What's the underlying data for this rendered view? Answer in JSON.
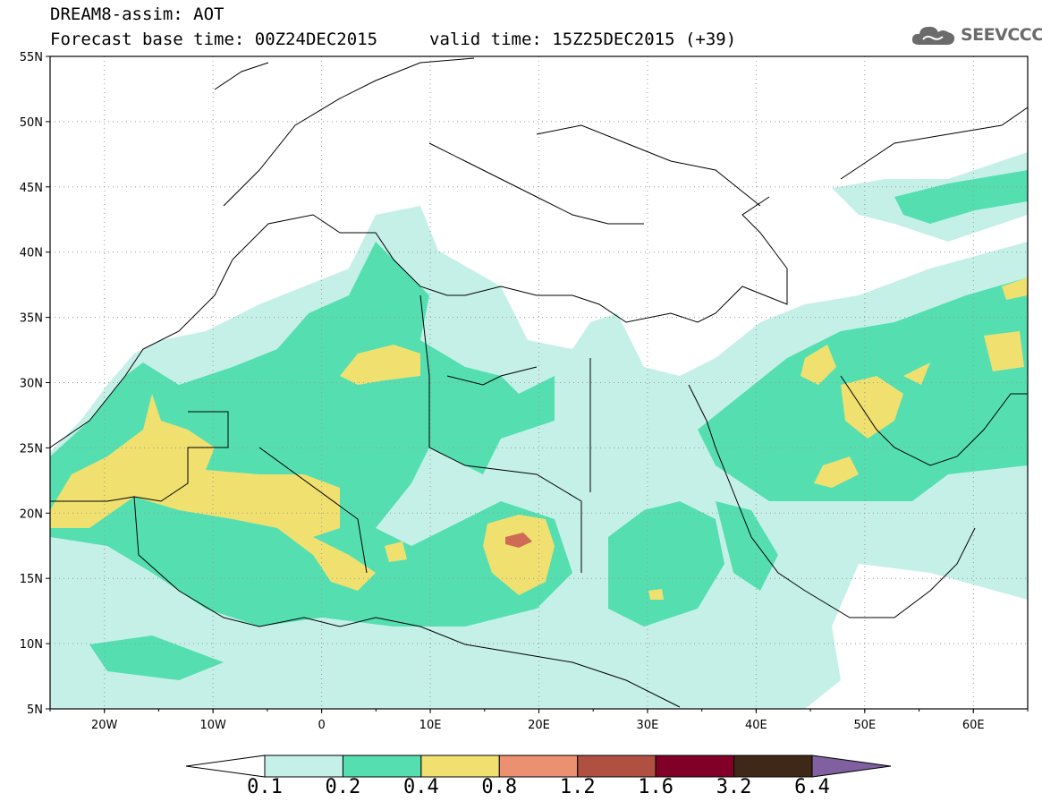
{
  "header": {
    "line1": "DREAM8-assim: AOT",
    "line2": "Forecast base time: 00Z24DEC2015",
    "valid": "valid time: 15Z25DEC2015 (+39)"
  },
  "logo": {
    "text": "SEEVCCC",
    "icon": "cloud-icon"
  },
  "axes": {
    "lat_labels": [
      "55N",
      "50N",
      "45N",
      "40N",
      "35N",
      "30N",
      "25N",
      "20N",
      "15N",
      "10N",
      "5N"
    ],
    "lon_labels": [
      "20W",
      "10W",
      "0",
      "10E",
      "20E",
      "30E",
      "40E",
      "50E",
      "60E"
    ],
    "lat_range": [
      5,
      55
    ],
    "lon_range": [
      -25,
      65
    ],
    "grid": "dotted"
  },
  "colorbar": {
    "labels": [
      "0.1",
      "0.2",
      "0.4",
      "0.8",
      "1.2",
      "1.6",
      "3.2",
      "6.4"
    ],
    "colors": [
      "#ffffff",
      "#c5f0e8",
      "#55dfb0",
      "#f0e070",
      "#eb9070",
      "#b05040",
      "#800028",
      "#402818",
      "#8060a0"
    ]
  },
  "fields": {
    "c01": "#c5f0e8",
    "c02": "#55dfb0",
    "c04": "#f0e070",
    "c08": "#eb9070",
    "c12": "#d06a55"
  }
}
